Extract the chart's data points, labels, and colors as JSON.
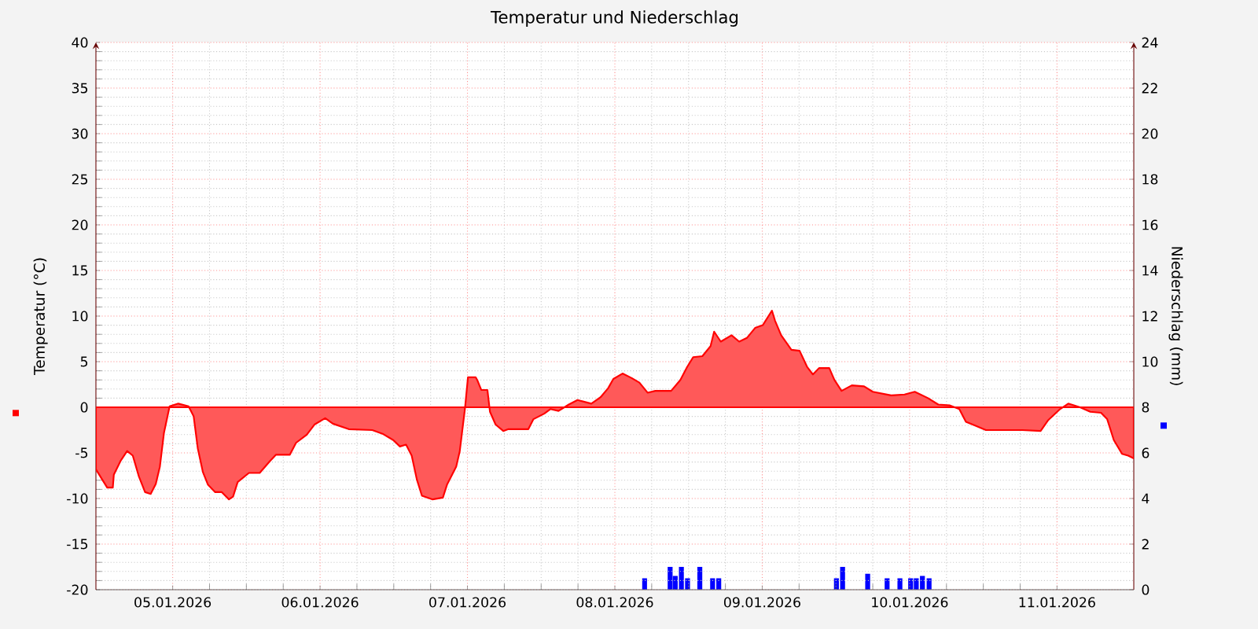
{
  "chart_data": {
    "type": "area",
    "title": "Temperatur und Niederschlag",
    "ylabel": "Temperatur (°C)",
    "y2label": "Niederschlag (mm)",
    "xlim": [
      "2026-01-04T11:30",
      "2026-01-11T12:30"
    ],
    "xticks": [
      {
        "value": "2026-01-05",
        "label": "05.01.2026"
      },
      {
        "value": "2026-01-06",
        "label": "06.01.2026"
      },
      {
        "value": "2026-01-07",
        "label": "07.01.2026"
      },
      {
        "value": "2026-01-08",
        "label": "08.01.2026"
      },
      {
        "value": "2026-01-09",
        "label": "09.01.2026"
      },
      {
        "value": "2026-01-10",
        "label": "10.01.2026"
      },
      {
        "value": "2026-01-11",
        "label": "11.01.2026"
      }
    ],
    "ylim": [
      -20,
      40
    ],
    "yticks": [
      -20,
      -15,
      -10,
      -5,
      0,
      5,
      10,
      15,
      20,
      25,
      30,
      35,
      40
    ],
    "y2lim": [
      0,
      24
    ],
    "y2ticks": [
      0,
      2,
      4,
      6,
      8,
      10,
      12,
      14,
      16,
      18,
      20,
      22,
      24
    ],
    "grid": true,
    "series": [
      {
        "color": "#ff0000",
        "x": [
          "2026-01-04T11:30",
          "2026-01-04T12:30",
          "2026-01-04T13:20",
          "2026-01-04T14:15",
          "2026-01-04T14:25",
          "2026-01-04T15:30",
          "2026-01-04T16:35",
          "2026-01-04T17:30",
          "2026-01-04T18:30",
          "2026-01-04T19:30",
          "2026-01-04T20:25",
          "2026-01-04T21:15",
          "2026-01-04T21:55",
          "2026-01-04T22:35",
          "2026-01-04T23:30",
          "2026-01-05T00:55",
          "2026-01-05T02:35",
          "2026-01-05T03:25",
          "2026-01-05T04:05",
          "2026-01-05T04:55",
          "2026-01-05T05:45",
          "2026-01-05T06:55",
          "2026-01-05T08:00",
          "2026-01-05T09:10",
          "2026-01-05T09:50",
          "2026-01-05T10:35",
          "2026-01-05T12:25",
          "2026-01-05T14:10",
          "2026-01-05T15:50",
          "2026-01-05T16:50",
          "2026-01-05T19:05",
          "2026-01-05T20:05",
          "2026-01-05T21:50",
          "2026-01-05T23:05",
          "2026-01-06T00:50",
          "2026-01-06T02:05",
          "2026-01-06T04:40",
          "2026-01-06T08:30",
          "2026-01-06T10:10",
          "2026-01-06T11:55",
          "2026-01-06T13:00",
          "2026-01-06T14:00",
          "2026-01-06T14:55",
          "2026-01-06T15:45",
          "2026-01-06T16:35",
          "2026-01-06T18:20",
          "2026-01-06T20:00",
          "2026-01-06T20:40",
          "2026-01-06T22:10",
          "2026-01-06T22:45",
          "2026-01-06T23:35",
          "2026-01-07T00:05",
          "2026-01-07T01:20",
          "2026-01-07T01:35",
          "2026-01-07T02:15",
          "2026-01-07T03:15",
          "2026-01-07T03:40",
          "2026-01-07T04:35",
          "2026-01-07T05:50",
          "2026-01-07T06:40",
          "2026-01-07T09:55",
          "2026-01-07T10:45",
          "2026-01-07T12:30",
          "2026-01-07T13:30",
          "2026-01-07T14:50",
          "2026-01-07T16:30",
          "2026-01-07T17:55",
          "2026-01-07T20:10",
          "2026-01-07T21:40",
          "2026-01-07T22:55",
          "2026-01-07T23:45",
          "2026-01-08T01:15",
          "2026-01-08T02:45",
          "2026-01-08T04:00",
          "2026-01-08T05:20",
          "2026-01-08T06:35",
          "2026-01-08T09:10",
          "2026-01-08T10:40",
          "2026-01-08T11:45",
          "2026-01-08T12:45",
          "2026-01-08T14:15",
          "2026-01-08T15:35",
          "2026-01-08T16:10",
          "2026-01-08T17:15",
          "2026-01-08T19:00",
          "2026-01-08T20:15",
          "2026-01-08T21:30",
          "2026-01-08T22:50",
          "2026-01-09T00:05",
          "2026-01-09T01:35",
          "2026-01-09T02:05",
          "2026-01-09T03:05",
          "2026-01-09T04:45",
          "2026-01-09T06:05",
          "2026-01-09T07:20",
          "2026-01-09T08:15",
          "2026-01-09T09:15",
          "2026-01-09T10:55",
          "2026-01-09T11:45",
          "2026-01-09T12:55",
          "2026-01-09T14:35",
          "2026-01-09T16:35",
          "2026-01-09T18:00",
          "2026-01-09T21:00",
          "2026-01-09T23:10",
          "2026-01-10T00:50",
          "2026-01-10T03:00",
          "2026-01-10T04:40",
          "2026-01-10T06:35",
          "2026-01-10T08:05",
          "2026-01-10T09:10",
          "2026-01-10T10:40",
          "2026-01-10T12:25",
          "2026-01-10T18:20",
          "2026-01-10T21:20",
          "2026-01-10T22:35",
          "2026-01-11T00:30",
          "2026-01-11T01:50",
          "2026-01-11T03:45",
          "2026-01-11T05:25",
          "2026-01-11T07:10",
          "2026-01-11T08:10",
          "2026-01-11T09:15",
          "2026-01-11T10:35",
          "2026-01-11T11:35",
          "2026-01-11T12:30"
        ],
        "values": [
          -6.8,
          -7.9,
          -8.8,
          -8.8,
          -7.4,
          -5.9,
          -4.8,
          -5.3,
          -7.6,
          -9.3,
          -9.5,
          -8.4,
          -6.5,
          -2.8,
          0.1,
          0.4,
          0.1,
          -1.0,
          -4.5,
          -7.1,
          -8.5,
          -9.3,
          -9.3,
          -10.1,
          -9.8,
          -8.2,
          -7.2,
          -7.2,
          -5.9,
          -5.2,
          -5.2,
          -3.9,
          -3.0,
          -1.9,
          -1.2,
          -1.8,
          -2.4,
          -2.5,
          -2.9,
          -3.6,
          -4.3,
          -4.1,
          -5.3,
          -7.9,
          -9.7,
          -10.1,
          -9.9,
          -8.5,
          -6.5,
          -4.8,
          -0.2,
          3.3,
          3.3,
          3.0,
          1.9,
          1.9,
          -0.5,
          -1.9,
          -2.6,
          -2.4,
          -2.4,
          -1.3,
          -0.7,
          -0.2,
          -0.4,
          0.3,
          0.8,
          0.4,
          1.1,
          2.1,
          3.1,
          3.7,
          3.2,
          2.7,
          1.6,
          1.8,
          1.8,
          3.0,
          4.4,
          5.5,
          5.6,
          6.7,
          8.3,
          7.2,
          7.9,
          7.2,
          7.6,
          8.7,
          9.0,
          10.6,
          9.5,
          7.9,
          6.3,
          6.2,
          4.4,
          3.6,
          4.3,
          4.3,
          3.0,
          1.8,
          2.4,
          2.3,
          1.7,
          1.3,
          1.4,
          1.7,
          1.0,
          0.3,
          0.2,
          -0.2,
          -1.6,
          -2.0,
          -2.5,
          -2.5,
          -2.6,
          -1.4,
          -0.2,
          0.4,
          0.0,
          -0.5,
          -0.6,
          -1.3,
          -3.6,
          -5.1,
          -5.3,
          -5.6
        ]
      },
      {
        "type": "bar",
        "axis": "y2",
        "color": "#0000ff",
        "x": [
          "2026-01-08T04:50",
          "2026-01-08T09:00",
          "2026-01-08T09:50",
          "2026-01-08T10:50",
          "2026-01-08T11:50",
          "2026-01-08T13:50",
          "2026-01-08T15:55",
          "2026-01-08T16:55",
          "2026-01-09T12:05",
          "2026-01-09T13:05",
          "2026-01-09T17:10",
          "2026-01-09T20:20",
          "2026-01-09T22:25",
          "2026-01-10T00:10",
          "2026-01-10T01:05",
          "2026-01-10T02:05",
          "2026-01-10T03:10"
        ],
        "values": [
          0.5,
          1.0,
          0.6,
          1.0,
          0.5,
          1.0,
          0.5,
          0.5,
          0.5,
          1.0,
          0.7,
          0.5,
          0.5,
          0.5,
          0.5,
          0.6,
          0.5
        ]
      }
    ]
  }
}
